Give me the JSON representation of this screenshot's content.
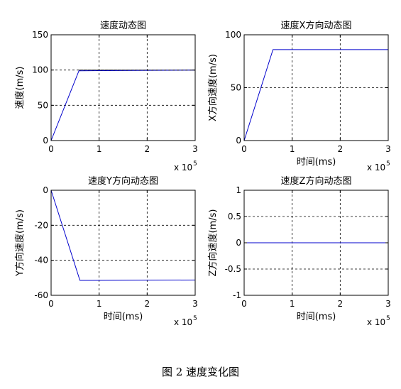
{
  "caption": "图 2  速度变化图",
  "chart_data": [
    {
      "type": "line",
      "title": "速度动态图",
      "xlabel": "",
      "ylabel": "速度(m/s)",
      "xlim": [
        0,
        3
      ],
      "ylim": [
        0,
        150
      ],
      "xticks": [
        "0",
        "1",
        "2",
        "3"
      ],
      "yticks": [
        "0",
        "50",
        "100",
        "150"
      ],
      "x_multiplier": "x 10",
      "x_multiplier_exp": "5",
      "grid": true,
      "series": [
        {
          "color": "#0000cc",
          "x": [
            0,
            0.58,
            3
          ],
          "y": [
            0,
            99,
            100
          ]
        },
        {
          "color": "#000000",
          "dashed": true,
          "x": [
            0.58,
            3
          ],
          "y": [
            100,
            100
          ]
        }
      ]
    },
    {
      "type": "line",
      "title": "速度X方向动态图",
      "xlabel": "时间(ms)",
      "ylabel": "X方向速度(m/s)",
      "xlim": [
        0,
        3
      ],
      "ylim": [
        0,
        100
      ],
      "xticks": [
        "0",
        "1",
        "2",
        "3"
      ],
      "yticks": [
        "0",
        "50",
        "100"
      ],
      "x_multiplier": "x 10",
      "x_multiplier_exp": "5",
      "grid": true,
      "series": [
        {
          "color": "#0000cc",
          "x": [
            0,
            0.6,
            3
          ],
          "y": [
            0,
            86,
            86
          ]
        }
      ]
    },
    {
      "type": "line",
      "title": "速度Y方向动态图",
      "xlabel": "时间(ms)",
      "ylabel": "Y方向速度(m/s)",
      "xlim": [
        0,
        3
      ],
      "ylim": [
        -60,
        0
      ],
      "xticks": [
        "0",
        "1",
        "2",
        "3"
      ],
      "yticks": [
        "-60",
        "-40",
        "-20",
        "0"
      ],
      "x_multiplier": "x 10",
      "x_multiplier_exp": "5",
      "grid": true,
      "series": [
        {
          "color": "#0000cc",
          "x": [
            0,
            0.6,
            3
          ],
          "y": [
            0,
            -51.5,
            -51.3
          ]
        }
      ]
    },
    {
      "type": "line",
      "title": "速度Z方向动态图",
      "xlabel": "时间(ms)",
      "ylabel": "Z方向速度(m/s)",
      "xlim": [
        0,
        3
      ],
      "ylim": [
        -1,
        1
      ],
      "xticks": [
        "0",
        "1",
        "2",
        "3"
      ],
      "yticks": [
        "-1",
        "-0.5",
        "0",
        "0.5",
        "1"
      ],
      "x_multiplier": "x 10",
      "x_multiplier_exp": "5",
      "grid": true,
      "series": [
        {
          "color": "#0000cc",
          "x": [
            0,
            3
          ],
          "y": [
            0,
            0
          ]
        }
      ]
    }
  ]
}
